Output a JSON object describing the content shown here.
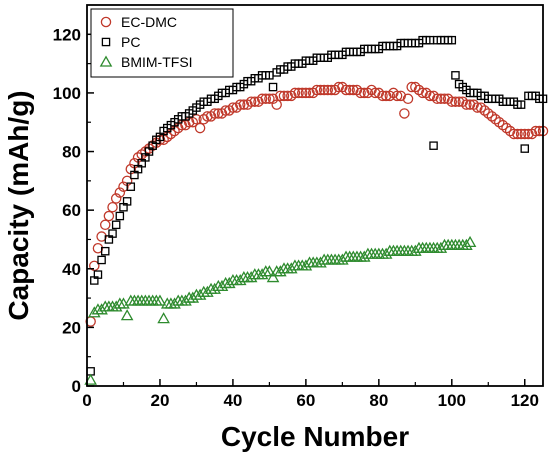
{
  "chart_data": {
    "type": "scatter",
    "title": "",
    "xlabel": "Cycle Number",
    "ylabel": "Capacity (mAh/g)",
    "xlim": [
      0,
      125
    ],
    "ylim": [
      0,
      130
    ],
    "x_ticks": [
      0,
      20,
      40,
      60,
      80,
      100,
      120
    ],
    "y_ticks": [
      0,
      20,
      40,
      60,
      80,
      100,
      120
    ],
    "grid": false,
    "legend_position": "top-left",
    "series": [
      {
        "name": "EC-DMC",
        "marker": "circle",
        "color": "#c0392b",
        "x": [
          1,
          2,
          3,
          4,
          5,
          6,
          7,
          8,
          9,
          10,
          11,
          12,
          13,
          14,
          15,
          16,
          17,
          18,
          19,
          20,
          21,
          22,
          23,
          24,
          25,
          26,
          27,
          28,
          29,
          30,
          31,
          32,
          33,
          34,
          35,
          36,
          37,
          38,
          39,
          40,
          41,
          42,
          43,
          44,
          45,
          46,
          47,
          48,
          49,
          50,
          51,
          52,
          53,
          54,
          55,
          56,
          57,
          58,
          59,
          60,
          61,
          62,
          63,
          64,
          65,
          66,
          67,
          68,
          69,
          70,
          71,
          72,
          73,
          74,
          75,
          76,
          77,
          78,
          79,
          80,
          81,
          82,
          83,
          84,
          85,
          86,
          87,
          88,
          89,
          90,
          91,
          92,
          93,
          94,
          95,
          96,
          97,
          98,
          99,
          100,
          101,
          102,
          103,
          104,
          105,
          106,
          107,
          108,
          109,
          110,
          111,
          112,
          113,
          114,
          115,
          116,
          117,
          118,
          119,
          120,
          121,
          122,
          123,
          124,
          125
        ],
        "y": [
          22,
          41,
          47,
          51,
          55,
          58,
          61,
          64,
          66,
          68,
          70,
          74,
          76,
          78,
          79,
          80,
          81,
          82,
          83,
          84,
          84,
          85,
          86,
          87,
          88,
          89,
          89,
          90,
          90,
          91,
          88,
          91,
          92,
          92,
          93,
          93,
          93,
          94,
          94,
          95,
          95,
          96,
          96,
          96,
          97,
          97,
          97,
          98,
          98,
          98,
          98,
          96,
          99,
          99,
          99,
          99,
          100,
          100,
          100,
          100,
          100,
          100,
          101,
          101,
          101,
          101,
          101,
          101,
          102,
          102,
          101,
          101,
          101,
          101,
          100,
          100,
          100,
          101,
          100,
          100,
          99,
          99,
          99,
          100,
          99,
          99,
          93,
          98,
          102,
          102,
          101,
          100,
          100,
          99,
          99,
          98,
          98,
          98,
          98,
          97,
          97,
          97,
          97,
          96,
          96,
          96,
          95,
          95,
          94,
          93,
          92,
          91,
          90,
          89,
          88,
          87,
          86,
          86,
          86,
          86,
          86,
          86,
          87,
          87,
          87
        ]
      },
      {
        "name": "PC",
        "marker": "square",
        "color": "#000000",
        "x": [
          1,
          2,
          3,
          4,
          5,
          6,
          7,
          8,
          9,
          10,
          11,
          12,
          13,
          14,
          15,
          16,
          17,
          18,
          19,
          20,
          21,
          22,
          23,
          24,
          25,
          26,
          27,
          28,
          29,
          30,
          31,
          32,
          33,
          34,
          35,
          36,
          37,
          38,
          39,
          40,
          41,
          42,
          43,
          44,
          45,
          46,
          47,
          48,
          49,
          50,
          51,
          52,
          53,
          54,
          55,
          56,
          57,
          58,
          59,
          60,
          61,
          62,
          63,
          64,
          65,
          66,
          67,
          68,
          69,
          70,
          71,
          72,
          73,
          74,
          75,
          76,
          77,
          78,
          79,
          80,
          81,
          82,
          83,
          84,
          85,
          86,
          87,
          88,
          89,
          90,
          91,
          92,
          93,
          94,
          95,
          96,
          97,
          98,
          99,
          100,
          101,
          102,
          103,
          104,
          105,
          106,
          107,
          108,
          109,
          110,
          111,
          112,
          113,
          114,
          115,
          116,
          117,
          118,
          119,
          120,
          121,
          122,
          123,
          124,
          125
        ],
        "y": [
          5,
          36,
          38,
          43,
          46,
          50,
          52,
          55,
          58,
          61,
          63,
          68,
          72,
          74,
          76,
          78,
          80,
          82,
          84,
          85,
          87,
          88,
          89,
          90,
          91,
          92,
          92,
          93,
          94,
          95,
          96,
          97,
          97,
          98,
          98,
          99,
          100,
          100,
          101,
          101,
          102,
          102,
          103,
          104,
          104,
          105,
          105,
          106,
          106,
          106,
          102,
          107,
          108,
          108,
          109,
          109,
          110,
          110,
          110,
          111,
          111,
          111,
          112,
          112,
          112,
          112,
          113,
          113,
          113,
          113,
          114,
          114,
          114,
          114,
          114,
          115,
          115,
          115,
          115,
          115,
          116,
          116,
          116,
          116,
          116,
          117,
          117,
          117,
          117,
          117,
          117,
          118,
          118,
          118,
          82,
          118,
          118,
          118,
          118,
          118,
          106,
          103,
          102,
          101,
          100,
          100,
          100,
          99,
          99,
          98,
          98,
          98,
          98,
          97,
          97,
          97,
          97,
          96,
          96,
          81,
          99,
          99,
          99,
          98,
          98
        ]
      },
      {
        "name": "BMIM-TFSI",
        "marker": "triangle",
        "color": "#2e8b2e",
        "x": [
          1,
          2,
          3,
          4,
          5,
          6,
          7,
          8,
          9,
          10,
          11,
          12,
          13,
          14,
          15,
          16,
          17,
          18,
          19,
          20,
          21,
          22,
          23,
          24,
          25,
          26,
          27,
          28,
          29,
          30,
          31,
          32,
          33,
          34,
          35,
          36,
          37,
          38,
          39,
          40,
          41,
          42,
          43,
          44,
          45,
          46,
          47,
          48,
          49,
          50,
          51,
          52,
          53,
          54,
          55,
          56,
          57,
          58,
          59,
          60,
          61,
          62,
          63,
          64,
          65,
          66,
          67,
          68,
          69,
          70,
          71,
          72,
          73,
          74,
          75,
          76,
          77,
          78,
          79,
          80,
          81,
          82,
          83,
          84,
          85,
          86,
          87,
          88,
          89,
          90,
          91,
          92,
          93,
          94,
          95,
          96,
          97,
          98,
          99,
          100,
          101,
          102,
          103,
          104,
          105
        ],
        "y": [
          2,
          25,
          26,
          26,
          27,
          27,
          27,
          27,
          28,
          28,
          24,
          29,
          29,
          29,
          29,
          29,
          29,
          29,
          29,
          29,
          23,
          28,
          28,
          28,
          29,
          29,
          29,
          30,
          30,
          31,
          31,
          32,
          32,
          33,
          33,
          34,
          34,
          35,
          35,
          36,
          36,
          36,
          37,
          37,
          37,
          38,
          38,
          38,
          39,
          39,
          37,
          39,
          39,
          40,
          40,
          40,
          41,
          41,
          41,
          41,
          42,
          42,
          42,
          42,
          43,
          43,
          43,
          43,
          43,
          43,
          44,
          44,
          44,
          44,
          44,
          44,
          45,
          45,
          45,
          45,
          45,
          45,
          46,
          46,
          46,
          46,
          46,
          46,
          46,
          46,
          47,
          47,
          47,
          47,
          47,
          47,
          47,
          48,
          48,
          48,
          48,
          48,
          48,
          48,
          49
        ]
      }
    ]
  }
}
